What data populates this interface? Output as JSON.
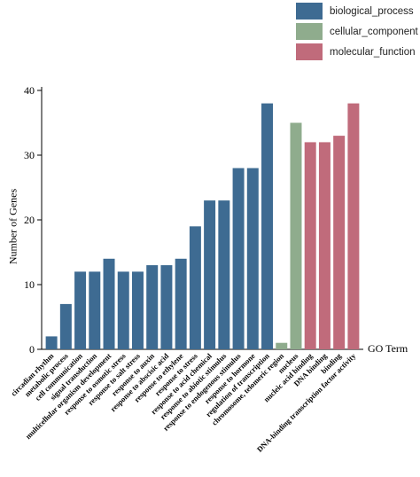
{
  "legend": {
    "items": [
      {
        "label": "biological_process",
        "color": "#3e6b92"
      },
      {
        "label": "cellular_component",
        "color": "#8fac8d"
      },
      {
        "label": "molecular_function",
        "color": "#c06b7b"
      }
    ]
  },
  "axes": {
    "ylabel": "Number of Genes",
    "xlabel": "GO Term"
  },
  "chart_data": {
    "type": "bar",
    "ylabel": "Number of Genes",
    "xlabel": "GO Term",
    "ylim": [
      0,
      40
    ],
    "yticks": [
      0,
      10,
      20,
      30,
      40
    ],
    "grid": false,
    "legend_position": "top-right",
    "categories": [
      "circadian rhythm",
      "metabolic process",
      "cell communication",
      "signal transduction",
      "multicellular organism development",
      "response to osmotic stress",
      "response to salt stress",
      "response to auxin",
      "response to abscisic acid",
      "response to ethylene",
      "response to stress",
      "response to acid chemical",
      "response to abiotic stimulus",
      "response to endogenous stimulus",
      "response to hormone",
      "regulation of transcription",
      "chromosome, telomeric region",
      "nucleus",
      "nucleic acid binding",
      "DNA binding",
      "binding",
      "DNA-binding transcription factor activity"
    ],
    "values": [
      2,
      7,
      12,
      12,
      14,
      12,
      12,
      13,
      13,
      14,
      19,
      23,
      23,
      28,
      28,
      38,
      1,
      35,
      32,
      32,
      33,
      38
    ],
    "groups": [
      "biological_process",
      "biological_process",
      "biological_process",
      "biological_process",
      "biological_process",
      "biological_process",
      "biological_process",
      "biological_process",
      "biological_process",
      "biological_process",
      "biological_process",
      "biological_process",
      "biological_process",
      "biological_process",
      "biological_process",
      "biological_process",
      "cellular_component",
      "cellular_component",
      "molecular_function",
      "molecular_function",
      "molecular_function",
      "molecular_function"
    ]
  }
}
